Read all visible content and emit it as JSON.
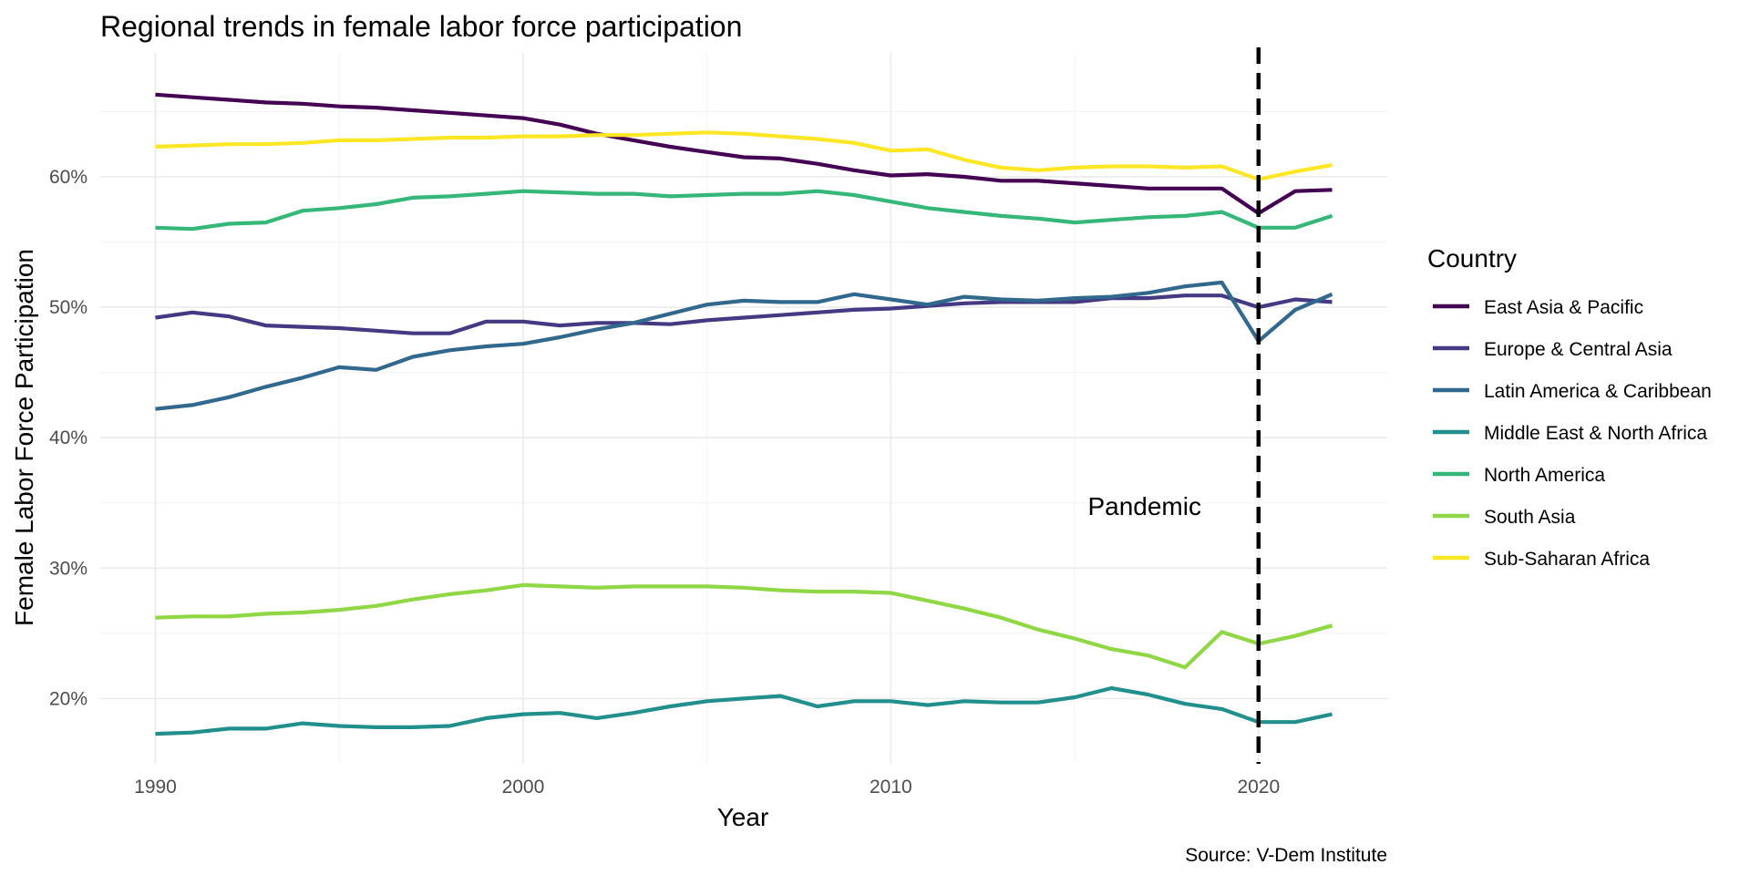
{
  "chart_data": {
    "type": "line",
    "title": "Regional trends in female labor force participation",
    "xlabel": "Year",
    "ylabel": "Female Labor Force Participation",
    "caption": "Source: V-Dem Institute",
    "legend_title": "Country",
    "legend_position": "right",
    "grid": true,
    "xlim": [
      1988.5,
      2023.5
    ],
    "ylim": [
      15,
      69.5
    ],
    "x_ticks": [
      1990,
      2000,
      2010,
      2020
    ],
    "x_tick_labels": [
      "1990",
      "2000",
      "2010",
      "2020"
    ],
    "y_ticks": [
      20,
      30,
      40,
      50,
      60
    ],
    "y_tick_labels": [
      "20%",
      "30%",
      "40%",
      "50%",
      "60%"
    ],
    "annotation": {
      "text": "Pandemic",
      "x": 2016.9,
      "y": 34.7
    },
    "vline": {
      "x": 2020,
      "style": "dashed",
      "color": "#000000"
    },
    "x": [
      1990,
      1991,
      1992,
      1993,
      1994,
      1995,
      1996,
      1997,
      1998,
      1999,
      2000,
      2001,
      2002,
      2003,
      2004,
      2005,
      2006,
      2007,
      2008,
      2009,
      2010,
      2011,
      2012,
      2013,
      2014,
      2015,
      2016,
      2017,
      2018,
      2019,
      2020,
      2021,
      2022
    ],
    "series": [
      {
        "name": "East Asia & Pacific",
        "color": "#440154",
        "values": [
          66.3,
          66.1,
          65.9,
          65.7,
          65.6,
          65.4,
          65.3,
          65.1,
          64.9,
          64.7,
          64.5,
          64.0,
          63.3,
          62.8,
          62.3,
          61.9,
          61.5,
          61.4,
          61.0,
          60.5,
          60.1,
          60.2,
          60.0,
          59.7,
          59.7,
          59.5,
          59.3,
          59.1,
          59.1,
          59.1,
          57.2,
          58.9,
          59.0
        ]
      },
      {
        "name": "Europe & Central Asia",
        "color": "#443A83",
        "values": [
          49.2,
          49.6,
          49.3,
          48.6,
          48.5,
          48.4,
          48.2,
          48.0,
          48.0,
          48.9,
          48.9,
          48.6,
          48.8,
          48.8,
          48.7,
          49.0,
          49.2,
          49.4,
          49.6,
          49.8,
          49.9,
          50.1,
          50.3,
          50.4,
          50.4,
          50.4,
          50.7,
          50.7,
          50.9,
          50.9,
          50.0,
          50.6,
          50.4
        ]
      },
      {
        "name": "Latin America & Caribbean",
        "color": "#31688E",
        "values": [
          42.2,
          42.5,
          43.1,
          43.9,
          44.6,
          45.4,
          45.2,
          46.2,
          46.7,
          47.0,
          47.2,
          47.7,
          48.3,
          48.8,
          49.5,
          50.2,
          50.5,
          50.4,
          50.4,
          51.0,
          50.6,
          50.2,
          50.8,
          50.6,
          50.5,
          50.7,
          50.8,
          51.1,
          51.6,
          51.9,
          47.4,
          49.8,
          51.0
        ]
      },
      {
        "name": "Middle East & North Africa",
        "color": "#21908D",
        "values": [
          17.3,
          17.4,
          17.7,
          17.7,
          18.1,
          17.9,
          17.8,
          17.8,
          17.9,
          18.5,
          18.8,
          18.9,
          18.5,
          18.9,
          19.4,
          19.8,
          20.0,
          20.2,
          19.4,
          19.8,
          19.8,
          19.5,
          19.8,
          19.7,
          19.7,
          20.1,
          20.8,
          20.3,
          19.6,
          19.2,
          18.2,
          18.2,
          18.8
        ]
      },
      {
        "name": "North America",
        "color": "#35B779",
        "values": [
          56.1,
          56.0,
          56.4,
          56.5,
          57.4,
          57.6,
          57.9,
          58.4,
          58.5,
          58.7,
          58.9,
          58.8,
          58.7,
          58.7,
          58.5,
          58.6,
          58.7,
          58.7,
          58.9,
          58.6,
          58.1,
          57.6,
          57.3,
          57.0,
          56.8,
          56.5,
          56.7,
          56.9,
          57.0,
          57.3,
          56.1,
          56.1,
          57.0
        ]
      },
      {
        "name": "South Asia",
        "color": "#8FD744",
        "values": [
          26.2,
          26.3,
          26.3,
          26.5,
          26.6,
          26.8,
          27.1,
          27.6,
          28.0,
          28.3,
          28.7,
          28.6,
          28.5,
          28.6,
          28.6,
          28.6,
          28.5,
          28.3,
          28.2,
          28.2,
          28.1,
          27.5,
          26.9,
          26.2,
          25.3,
          24.6,
          23.8,
          23.3,
          22.4,
          25.1,
          24.2,
          24.8,
          25.6
        ]
      },
      {
        "name": "Sub-Saharan Africa",
        "color": "#FDE725",
        "values": [
          62.3,
          62.4,
          62.5,
          62.5,
          62.6,
          62.8,
          62.8,
          62.9,
          63.0,
          63.0,
          63.1,
          63.1,
          63.2,
          63.2,
          63.3,
          63.4,
          63.3,
          63.1,
          62.9,
          62.6,
          62.0,
          62.1,
          61.3,
          60.7,
          60.5,
          60.7,
          60.8,
          60.8,
          60.7,
          60.8,
          59.8,
          60.4,
          60.9
        ]
      }
    ]
  }
}
